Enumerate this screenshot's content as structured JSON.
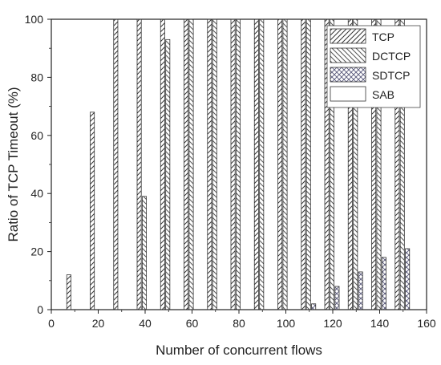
{
  "chart_data": {
    "type": "bar",
    "xlabel": "Number of concurrent flows",
    "ylabel": "Ratio of TCP Timeout (%)",
    "xlim": [
      0,
      160
    ],
    "ylim": [
      0,
      100
    ],
    "xticks": [
      0,
      20,
      40,
      60,
      80,
      100,
      120,
      140,
      160
    ],
    "yticks": [
      0,
      20,
      40,
      60,
      80,
      100
    ],
    "grid": false,
    "legend_position": "top-right",
    "categories": [
      10,
      20,
      30,
      40,
      50,
      60,
      70,
      80,
      90,
      100,
      110,
      120,
      130,
      140,
      150
    ],
    "series": [
      {
        "name": "TCP",
        "pattern": "diag-right",
        "values": [
          12,
          68,
          100,
          100,
          100,
          100,
          100,
          100,
          100,
          100,
          100,
          100,
          100,
          100,
          100
        ]
      },
      {
        "name": "DCTCP",
        "pattern": "diag-left",
        "values": [
          0,
          0,
          0,
          39,
          93,
          100,
          100,
          100,
          100,
          100,
          100,
          100,
          100,
          100,
          100
        ]
      },
      {
        "name": "SDTCP",
        "pattern": "crosshatch",
        "values": [
          0,
          0,
          0,
          0,
          0,
          0,
          0,
          0,
          0,
          0,
          2,
          8,
          13,
          18,
          21
        ]
      },
      {
        "name": "SAB",
        "pattern": "solid-line",
        "values": [
          0,
          0,
          0,
          0,
          0,
          0,
          0,
          0,
          0,
          0,
          0,
          0,
          0,
          0,
          0
        ]
      }
    ]
  }
}
